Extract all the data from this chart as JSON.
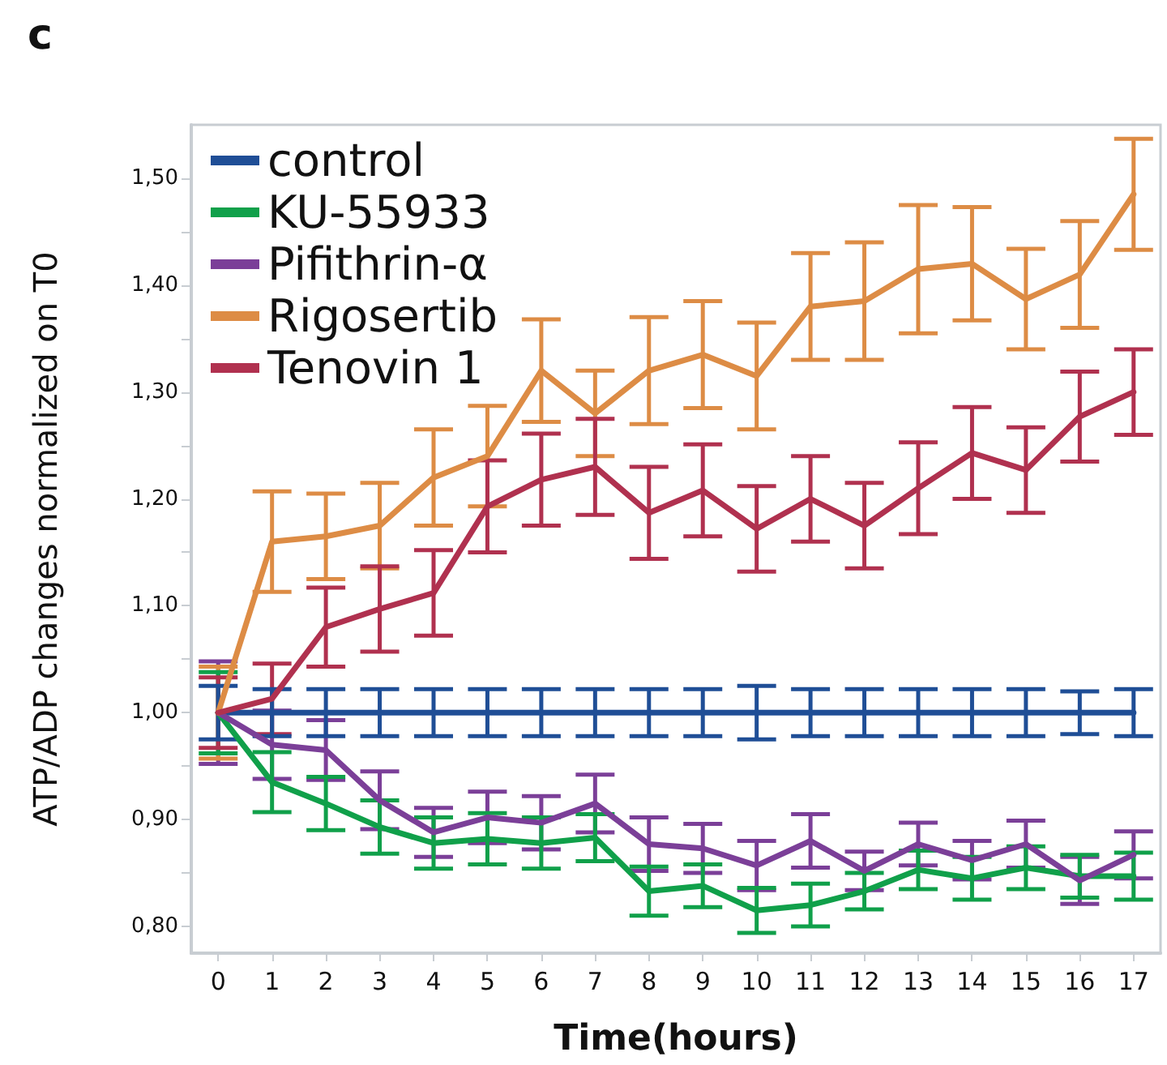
{
  "chart_data": {
    "type": "line",
    "title": "c",
    "xlabel": "Time(hours)",
    "ylabel": "ATP/ADP changes normalized on T0",
    "x": [
      0,
      1,
      2,
      3,
      4,
      5,
      6,
      7,
      8,
      9,
      10,
      11,
      12,
      13,
      14,
      15,
      16,
      17
    ],
    "series": [
      {
        "name": "control",
        "color": "#1f4e96",
        "values": [
          1,
          1,
          1,
          1,
          1,
          1,
          1,
          1,
          1,
          1,
          1,
          1,
          1,
          1,
          1,
          1,
          1,
          1
        ],
        "errors": [
          0.025,
          0.022,
          0.022,
          0.022,
          0.022,
          0.022,
          0.022,
          0.022,
          0.022,
          0.022,
          0.025,
          0.022,
          0.022,
          0.022,
          0.022,
          0.022,
          0.02,
          0.022
        ]
      },
      {
        "name": "KU-55933",
        "color": "#10a04a",
        "values": [
          1,
          0.935,
          0.915,
          0.893,
          0.878,
          0.882,
          0.878,
          0.883,
          0.833,
          0.838,
          0.815,
          0.82,
          0.833,
          0.853,
          0.845,
          0.855,
          0.847,
          0.847
        ],
        "errors": [
          0.038,
          0.028,
          0.025,
          0.025,
          0.024,
          0.024,
          0.024,
          0.022,
          0.023,
          0.02,
          0.021,
          0.02,
          0.017,
          0.018,
          0.02,
          0.02,
          0.02,
          0.022
        ]
      },
      {
        "name": "Pifithrin-α",
        "color": "#7b3f98",
        "values": [
          1,
          0.97,
          0.965,
          0.918,
          0.888,
          0.902,
          0.897,
          0.915,
          0.877,
          0.873,
          0.857,
          0.88,
          0.852,
          0.877,
          0.862,
          0.877,
          0.843,
          0.867
        ],
        "errors": [
          0.048,
          0.032,
          0.028,
          0.027,
          0.023,
          0.024,
          0.025,
          0.027,
          0.025,
          0.023,
          0.023,
          0.025,
          0.018,
          0.02,
          0.018,
          0.022,
          0.022,
          0.022
        ]
      },
      {
        "name": "Rigosertib",
        "color": "#dd8c45",
        "values": [
          1,
          1.16,
          1.165,
          1.175,
          1.22,
          1.24,
          1.32,
          1.28,
          1.32,
          1.335,
          1.315,
          1.38,
          1.385,
          1.415,
          1.42,
          1.387,
          1.41,
          1.485
        ],
        "errors": [
          0.043,
          0.047,
          0.04,
          0.04,
          0.045,
          0.047,
          0.048,
          0.04,
          0.05,
          0.05,
          0.05,
          0.05,
          0.055,
          0.06,
          0.053,
          0.047,
          0.05,
          0.052
        ]
      },
      {
        "name": "Tenovin 1",
        "color": "#b0314f",
        "values": [
          1,
          1.013,
          1.08,
          1.097,
          1.112,
          1.193,
          1.218,
          1.23,
          1.187,
          1.208,
          1.172,
          1.2,
          1.175,
          1.21,
          1.243,
          1.227,
          1.277,
          1.3
        ],
        "errors": [
          0.033,
          0.033,
          0.037,
          0.04,
          0.04,
          0.043,
          0.043,
          0.045,
          0.043,
          0.043,
          0.04,
          0.04,
          0.04,
          0.043,
          0.043,
          0.04,
          0.042,
          0.04
        ]
      }
    ],
    "xlim": [
      -0.5,
      17.5
    ],
    "xticks": [
      0,
      1,
      2,
      3,
      4,
      5,
      6,
      7,
      8,
      9,
      10,
      11,
      12,
      13,
      14,
      15,
      16,
      17
    ],
    "ylim": [
      0.775,
      1.55
    ],
    "yticks": [
      {
        "value": 0.8,
        "label": "0,80"
      },
      {
        "value": 0.85,
        "label": null
      },
      {
        "value": 0.9,
        "label": "0,90"
      },
      {
        "value": 0.95,
        "label": null
      },
      {
        "value": 1.0,
        "label": "1,00"
      },
      {
        "value": 1.05,
        "label": null
      },
      {
        "value": 1.1,
        "label": "1,10"
      },
      {
        "value": 1.15,
        "label": null
      },
      {
        "value": 1.2,
        "label": "1,20"
      },
      {
        "value": 1.25,
        "label": null
      },
      {
        "value": 1.3,
        "label": "1,30"
      },
      {
        "value": 1.35,
        "label": null
      },
      {
        "value": 1.4,
        "label": "1,40"
      },
      {
        "value": 1.45,
        "label": null
      },
      {
        "value": 1.5,
        "label": "1,50"
      }
    ],
    "grid": false,
    "legend": "top left",
    "marker": "none",
    "line_style": "solid"
  }
}
